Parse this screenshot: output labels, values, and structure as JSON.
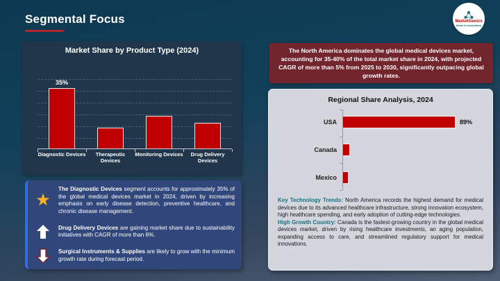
{
  "slide": {
    "title": "Segmental Focus"
  },
  "logo": {
    "name": "MarketGenics",
    "tagline": "Ideas to Innovation"
  },
  "colors": {
    "accent_red": "#c00000",
    "maroon_box": "#73252e",
    "panel_navy": "#21364b",
    "gray_panel": "#d3d6dd",
    "callout_blue": "#31477b",
    "callout_border_blue": "#2f6fe0",
    "teal_lead": "#17707f",
    "star_gold": "#f3b229"
  },
  "north_america_box": {
    "text": "The North America dominates the global medical devices market, accounting for 35-40% of the total market share in 2024, with projected CAGR of more than 5% from 2025 to 2030, significantly outpacing global growth rates."
  },
  "chart_data": [
    {
      "type": "bar",
      "orientation": "vertical",
      "title": "Market Share by Product Type (2024)",
      "categories": [
        "Diagnostic Devices",
        "Therapeutic Devices",
        "Monitoring Devices",
        "Drug Delivery Devices"
      ],
      "values": [
        35,
        12,
        19,
        15
      ],
      "data_labels": [
        "35%",
        "",
        "",
        ""
      ],
      "ylim": [
        0,
        45
      ],
      "grid": true,
      "legend": false,
      "bar_color": "#c00000"
    },
    {
      "type": "bar",
      "orientation": "horizontal",
      "title": "Regional Share Analysis, 2024",
      "categories": [
        "USA",
        "Canada",
        "Mexico"
      ],
      "values": [
        89,
        6,
        5
      ],
      "data_labels": [
        "89%",
        "",
        ""
      ],
      "xlim": [
        0,
        100
      ],
      "grid": false,
      "legend": false,
      "bar_color": "#c00000"
    }
  ],
  "callouts": [
    {
      "icon": "star-icon",
      "lead": "The Diagnostic Devices",
      "text": " segment accounts for approximately 35% of the global medical devices market in 2024, driven by increasing emphasis on early disease detection, preventive healthcare, and chronic disease management."
    },
    {
      "icon": "up-arrow-icon",
      "lead": "Drug Delivery Devices",
      "text": " are gaining market share due to sustainability initiatives with CAGR of more than 6%."
    },
    {
      "icon": "down-arrow-icon",
      "lead": "Surgical Instruments & Supplies",
      "text": " are likely to grow with the minimum growth rate during forecast period."
    }
  ],
  "insights": [
    {
      "lead": "Key Technology Trends:",
      "text": " North America records the highest demand for medical devices due to its advanced healthcare infrastructure, strong innovation ecosystem, high healthcare spending, and early adoption of cutting-edge technologies."
    },
    {
      "lead": "High Growth Country:",
      "text": " Canada is the fastest-growing country in the global medical devices market, driven by rising healthcare investments, an aging population, expanding access to care, and streamlined regulatory support for medical innovations."
    }
  ]
}
